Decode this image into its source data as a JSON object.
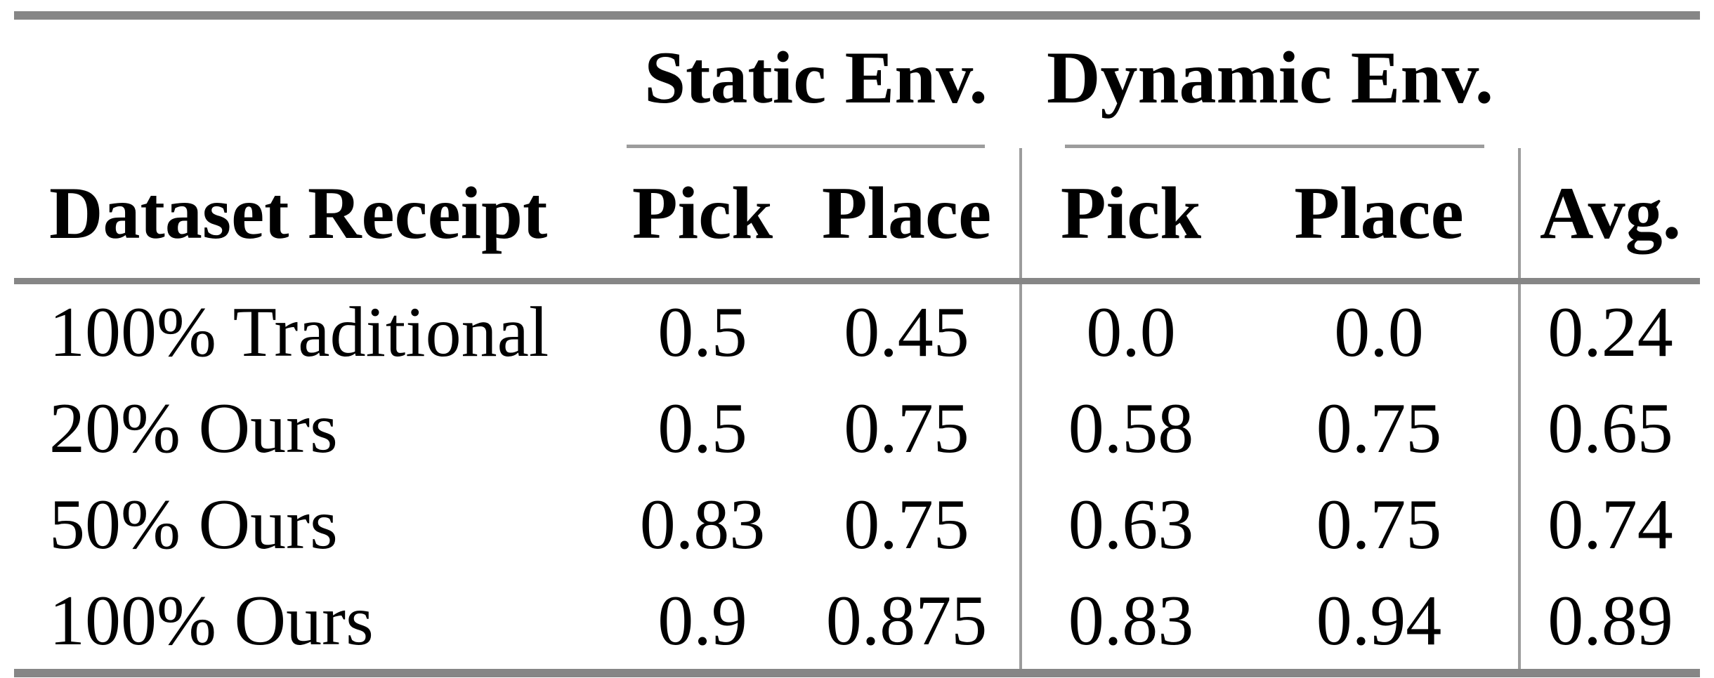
{
  "figure": {
    "background": "#ffffff",
    "text_color": "#000000",
    "rule_color_thick": "#868686",
    "rule_color_thin": "#9c9c9c"
  },
  "table": {
    "row_header": "Dataset Receipt",
    "groups": [
      {
        "label": "Static Env.",
        "columns": [
          "Pick",
          "Place"
        ]
      },
      {
        "label": "Dynamic Env.",
        "columns": [
          "Pick",
          "Place"
        ]
      }
    ],
    "avg_header": "Avg.",
    "rows": [
      {
        "label": "100% Traditional",
        "values": [
          "0.5",
          "0.45",
          "0.0",
          "0.0",
          "0.24"
        ]
      },
      {
        "label": "20% Ours",
        "values": [
          "0.5",
          "0.75",
          "0.58",
          "0.75",
          "0.65"
        ]
      },
      {
        "label": "50% Ours",
        "values": [
          "0.83",
          "0.75",
          "0.63",
          "0.75",
          "0.74"
        ]
      },
      {
        "label": "100% Ours",
        "values": [
          "0.9",
          "0.875",
          "0.83",
          "0.94",
          "0.89"
        ]
      }
    ]
  },
  "chart_data": {
    "type": "table",
    "columns": [
      "Dataset Receipt",
      "Static Env. Pick",
      "Static Env. Place",
      "Dynamic Env. Pick",
      "Dynamic Env. Place",
      "Avg."
    ],
    "rows": [
      [
        "100% Traditional",
        0.5,
        0.45,
        0.0,
        0.0,
        0.24
      ],
      [
        "20% Ours",
        0.5,
        0.75,
        0.58,
        0.75,
        0.65
      ],
      [
        "50% Ours",
        0.83,
        0.75,
        0.63,
        0.75,
        0.74
      ],
      [
        "100% Ours",
        0.9,
        0.875,
        0.83,
        0.94,
        0.89
      ]
    ]
  }
}
